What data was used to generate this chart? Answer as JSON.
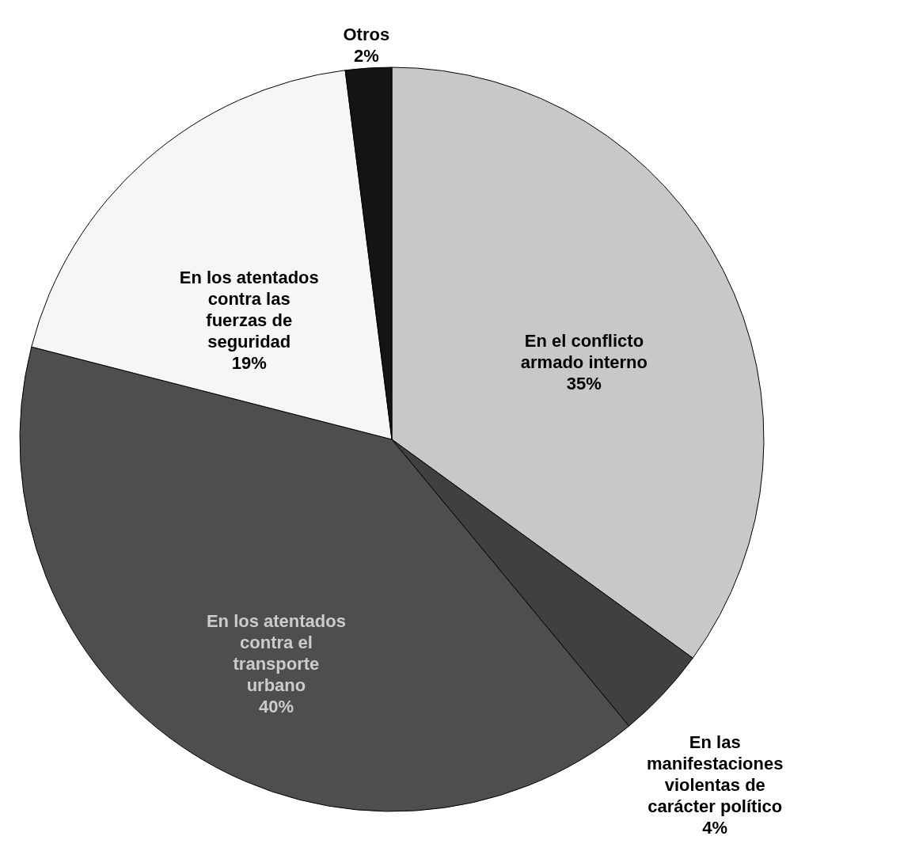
{
  "chart_data": {
    "type": "pie",
    "categories": [
      "En el conflicto armado interno",
      "En las manifestaciones violentas de carácter político",
      "En los atentados contra el transporte urbano",
      "En los atentados contra las fuerzas de seguridad",
      "Otros"
    ],
    "values": [
      35,
      4,
      40,
      19,
      2
    ],
    "value_labels": [
      "35%",
      "4%",
      "40%",
      "19%",
      "2%"
    ],
    "colors": [
      "#c8c8c8",
      "#404040",
      "#4e4e4e",
      "#f6f6f6",
      "#141414"
    ]
  }
}
